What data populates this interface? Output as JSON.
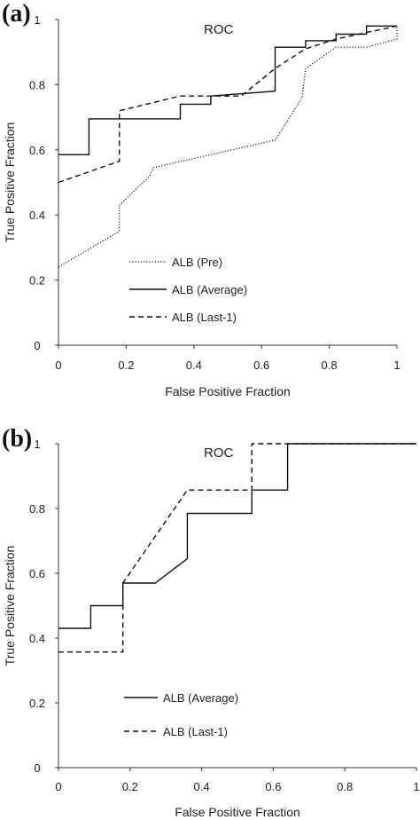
{
  "chart_data": [
    {
      "type": "line",
      "panel_label": "(a)",
      "title": "ROC",
      "xlabel": "False Positive Fraction",
      "ylabel": "True Positive Fraction",
      "xlim": [
        0,
        1
      ],
      "ylim": [
        0,
        1
      ],
      "xticks": [
        "0",
        "0.2",
        "0.4",
        "0.6",
        "0.8",
        "1"
      ],
      "yticks": [
        "0",
        "0.2",
        "0.4",
        "0.6",
        "0.8",
        "1"
      ],
      "legend_position": "bottom-left",
      "grid": false,
      "series": [
        {
          "name": "ALB (Pre)",
          "style": "dotted",
          "x": [
            0,
            0.18,
            0.18,
            0.27,
            0.28,
            0.64,
            0.72,
            0.73,
            0.82,
            0.91,
            1.0,
            1.0
          ],
          "y": [
            0.24,
            0.35,
            0.43,
            0.52,
            0.545,
            0.63,
            0.76,
            0.85,
            0.915,
            0.915,
            0.94,
            0.98
          ]
        },
        {
          "name": "ALB (Average)",
          "style": "solid",
          "x": [
            0,
            0.09,
            0.09,
            0.36,
            0.36,
            0.45,
            0.45,
            0.64,
            0.64,
            0.73,
            0.73,
            0.82,
            0.82,
            0.91,
            0.91,
            1.0
          ],
          "y": [
            0.585,
            0.585,
            0.695,
            0.695,
            0.74,
            0.74,
            0.765,
            0.78,
            0.915,
            0.915,
            0.935,
            0.935,
            0.955,
            0.955,
            0.98,
            0.98
          ]
        },
        {
          "name": "ALB (Last-1)",
          "style": "dashed",
          "x": [
            0,
            0.18,
            0.18,
            0.36,
            0.45,
            0.54,
            0.64,
            0.73,
            0.82,
            1.0
          ],
          "y": [
            0.5,
            0.565,
            0.72,
            0.765,
            0.765,
            0.765,
            0.85,
            0.91,
            0.94,
            0.98
          ]
        }
      ]
    },
    {
      "type": "line",
      "panel_label": "(b)",
      "title": "ROC",
      "xlabel": "False Positive Fraction",
      "ylabel": "True Positive Fraction",
      "xlim": [
        0,
        1
      ],
      "ylim": [
        0,
        1
      ],
      "xticks": [
        "0",
        "0.2",
        "0.4",
        "0.6",
        "0.8",
        "1"
      ],
      "yticks": [
        "0",
        "0.2",
        "0.4",
        "0.6",
        "0.8",
        "1"
      ],
      "legend_position": "bottom-left",
      "grid": false,
      "series": [
        {
          "name": "ALB (Average)",
          "style": "solid",
          "x": [
            0,
            0.09,
            0.09,
            0.18,
            0.18,
            0.27,
            0.36,
            0.36,
            0.54,
            0.54,
            0.64,
            0.64,
            1.0
          ],
          "y": [
            0.43,
            0.43,
            0.5,
            0.5,
            0.57,
            0.57,
            0.645,
            0.785,
            0.785,
            0.857,
            0.857,
            1.0,
            1.0
          ]
        },
        {
          "name": "ALB (Last-1)",
          "style": "dashed",
          "x": [
            0,
            0.18,
            0.18,
            0.36,
            0.54,
            0.54,
            1.0
          ],
          "y": [
            0.357,
            0.357,
            0.57,
            0.857,
            0.857,
            1.0,
            1.0
          ]
        }
      ]
    }
  ]
}
